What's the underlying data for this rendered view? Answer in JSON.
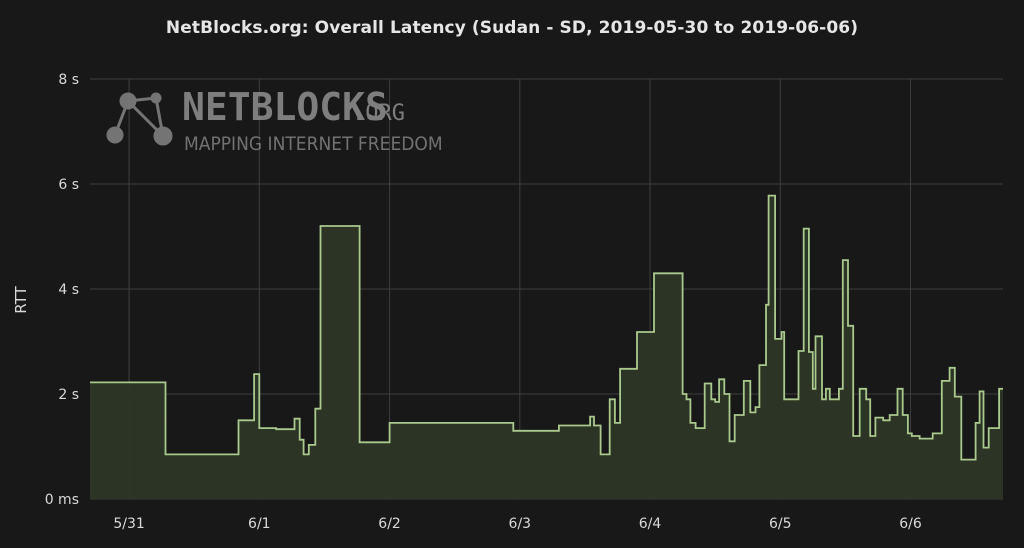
{
  "chart_title": "NetBlocks.org: Overall Latency (Sudan - SD, 2019-05-30 to 2019-06-06)",
  "watermark": {
    "brand": "NETBLOCKS",
    "suffix": ".ORG",
    "tagline": "MAPPING INTERNET FREEDOM",
    "icon": "network-nodes-icon"
  },
  "colors": {
    "background": "#181818",
    "grid": "#3e3e3e",
    "line": "#a9c98d",
    "fill": "#2c3626"
  },
  "chart_data": {
    "type": "area",
    "title": "NetBlocks.org: Overall Latency (Sudan - SD, 2019-05-30 to 2019-06-06)",
    "xlabel": "",
    "ylabel": "RTT",
    "x_unit": "days (May 30 – June 6, 2019)",
    "y_unit": "seconds",
    "xlim": [
      30.7,
      37.71
    ],
    "ylim": [
      0,
      8
    ],
    "x_ticks": [
      {
        "value": 31,
        "label": "5/31"
      },
      {
        "value": 32,
        "label": "6/1"
      },
      {
        "value": 33,
        "label": "6/2"
      },
      {
        "value": 34,
        "label": "6/3"
      },
      {
        "value": 35,
        "label": "6/4"
      },
      {
        "value": 36,
        "label": "6/5"
      },
      {
        "value": 37,
        "label": "6/6"
      }
    ],
    "y_ticks": [
      {
        "value": 0,
        "label": "0 ms"
      },
      {
        "value": 2,
        "label": "2 s"
      },
      {
        "value": 4,
        "label": "4 s"
      },
      {
        "value": 6,
        "label": "6 s"
      },
      {
        "value": 8,
        "label": "8 s"
      }
    ],
    "grid": true,
    "legend": "none",
    "series": [
      {
        "step": "after",
        "points": [
          [
            30.7,
            2.22
          ],
          [
            31.28,
            0.85
          ],
          [
            31.84,
            1.5
          ],
          [
            31.96,
            2.38
          ],
          [
            32.0,
            1.35
          ],
          [
            32.13,
            1.33
          ],
          [
            32.27,
            1.53
          ],
          [
            32.31,
            1.13
          ],
          [
            32.34,
            0.85
          ],
          [
            32.38,
            1.03
          ],
          [
            32.43,
            1.72
          ],
          [
            32.47,
            5.2
          ],
          [
            32.77,
            1.08
          ],
          [
            33.0,
            1.45
          ],
          [
            33.95,
            1.3
          ],
          [
            34.3,
            1.4
          ],
          [
            34.54,
            1.57
          ],
          [
            34.57,
            1.4
          ],
          [
            34.62,
            0.85
          ],
          [
            34.69,
            1.9
          ],
          [
            34.73,
            1.45
          ],
          [
            34.77,
            2.48
          ],
          [
            34.9,
            3.18
          ],
          [
            35.03,
            4.3
          ],
          [
            35.25,
            2.0
          ],
          [
            35.28,
            1.9
          ],
          [
            35.31,
            1.45
          ],
          [
            35.35,
            1.35
          ],
          [
            35.42,
            2.2
          ],
          [
            35.47,
            1.9
          ],
          [
            35.5,
            1.85
          ],
          [
            35.53,
            2.28
          ],
          [
            35.57,
            2.0
          ],
          [
            35.61,
            1.1
          ],
          [
            35.65,
            1.6
          ],
          [
            35.68,
            1.6
          ],
          [
            35.72,
            2.25
          ],
          [
            35.77,
            1.65
          ],
          [
            35.81,
            1.75
          ],
          [
            35.84,
            2.55
          ],
          [
            35.89,
            3.7
          ],
          [
            35.91,
            5.78
          ],
          [
            35.96,
            3.05
          ],
          [
            36.01,
            3.18
          ],
          [
            36.03,
            1.9
          ],
          [
            36.12,
            1.9
          ],
          [
            36.14,
            2.82
          ],
          [
            36.18,
            5.15
          ],
          [
            36.22,
            2.8
          ],
          [
            36.25,
            2.1
          ],
          [
            36.27,
            3.1
          ],
          [
            36.32,
            1.9
          ],
          [
            36.35,
            2.1
          ],
          [
            36.38,
            1.9
          ],
          [
            36.45,
            2.1
          ],
          [
            36.48,
            4.55
          ],
          [
            36.52,
            3.3
          ],
          [
            36.56,
            1.2
          ],
          [
            36.61,
            2.1
          ],
          [
            36.66,
            1.9
          ],
          [
            36.69,
            1.2
          ],
          [
            36.73,
            1.55
          ],
          [
            36.79,
            1.5
          ],
          [
            36.84,
            1.6
          ],
          [
            36.9,
            2.1
          ],
          [
            36.94,
            1.6
          ],
          [
            36.98,
            1.25
          ],
          [
            37.01,
            1.2
          ],
          [
            37.05,
            1.2
          ],
          [
            37.07,
            1.15
          ],
          [
            37.17,
            1.25
          ],
          [
            37.24,
            2.25
          ],
          [
            37.3,
            2.5
          ],
          [
            37.34,
            1.95
          ],
          [
            37.39,
            0.75
          ],
          [
            37.5,
            1.45
          ],
          [
            37.53,
            2.05
          ],
          [
            37.56,
            0.98
          ],
          [
            37.6,
            1.35
          ],
          [
            37.68,
            2.1
          ],
          [
            37.71,
            2.1
          ]
        ]
      }
    ]
  }
}
